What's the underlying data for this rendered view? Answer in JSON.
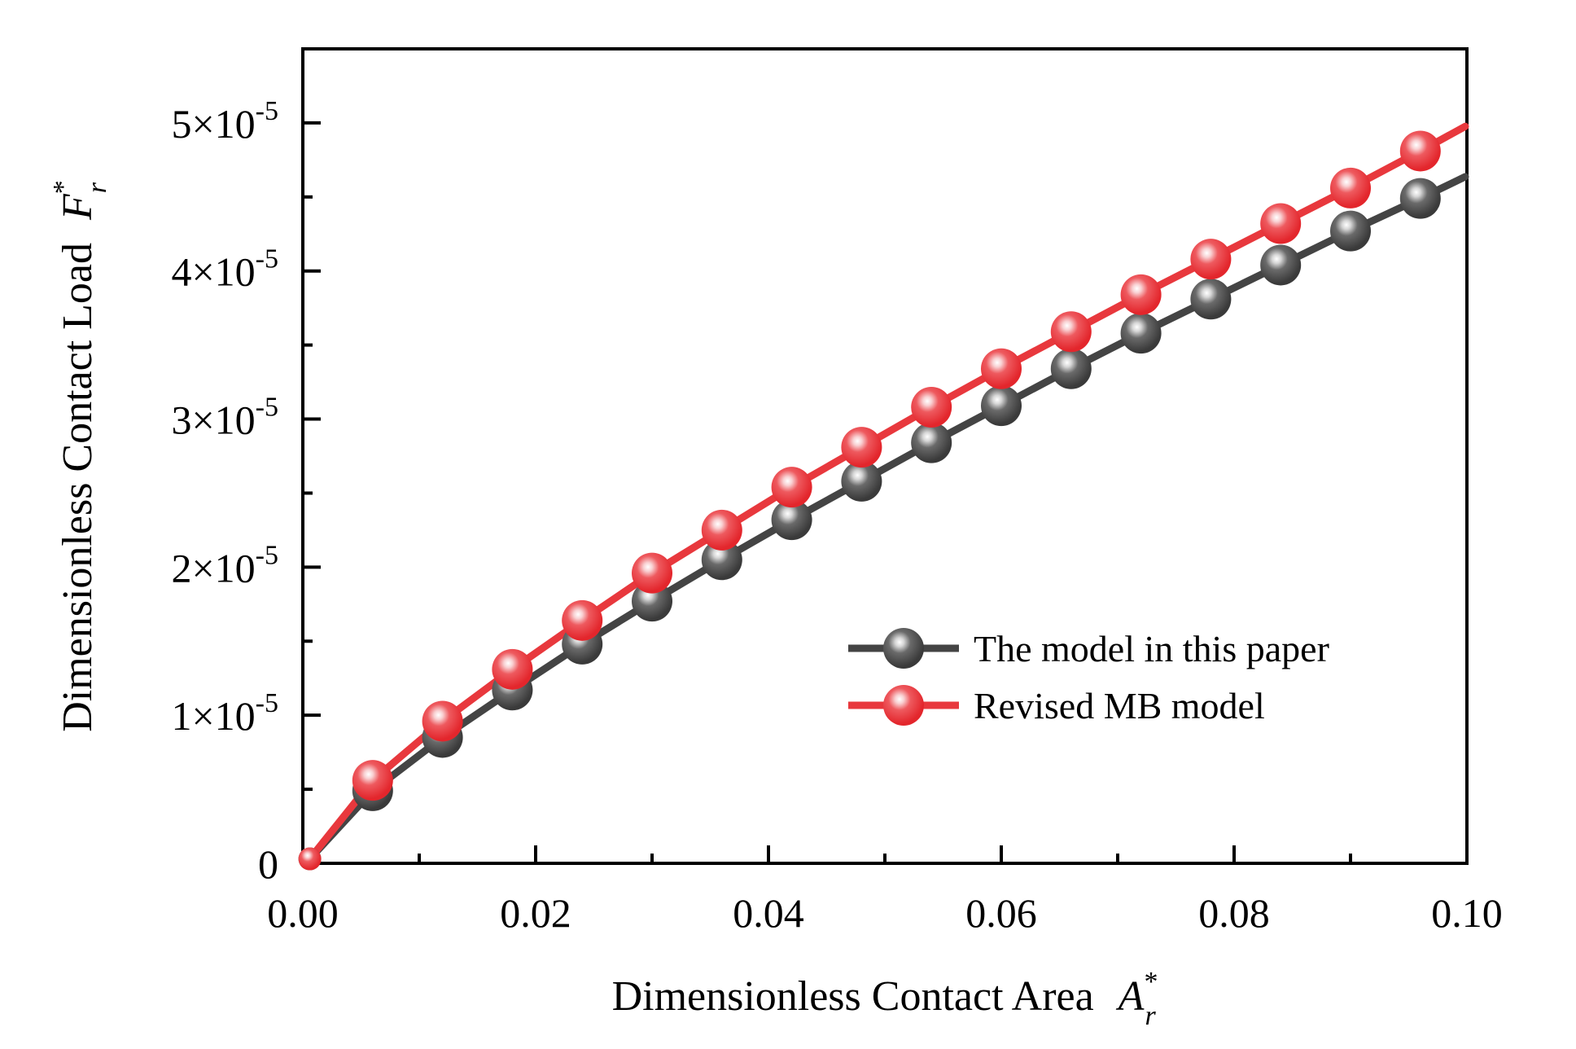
{
  "chart_data": {
    "type": "line",
    "title": "",
    "xlabel": "Dimensionless Contact Area",
    "xlabel_symbol": "A",
    "xlabel_sup": "*",
    "xlabel_sub": "r",
    "ylabel": "Dimensionless Contact Load",
    "ylabel_symbol": "F",
    "ylabel_sup": "*",
    "ylabel_sub": "r",
    "xlim": [
      0,
      0.1
    ],
    "ylim": [
      0,
      5.5e-05
    ],
    "x_ticks": [
      0,
      0.02,
      0.04,
      0.06,
      0.08,
      0.1
    ],
    "x_tick_labels": [
      "0.00",
      "0.02",
      "0.04",
      "0.06",
      "0.08",
      "0.10"
    ],
    "y_ticks": [
      0,
      1e-05,
      2e-05,
      3e-05,
      4e-05,
      5e-05
    ],
    "y_tick_labels": [
      {
        "mant": "0",
        "exp": ""
      },
      {
        "mant": "1×10",
        "exp": "-5"
      },
      {
        "mant": "2×10",
        "exp": "-5"
      },
      {
        "mant": "3×10",
        "exp": "-5"
      },
      {
        "mant": "4×10",
        "exp": "-5"
      },
      {
        "mant": "5×10",
        "exp": "-5"
      }
    ],
    "grid": false,
    "legend_position": "center-right",
    "series": [
      {
        "name": "The model in this paper",
        "color": "#444444",
        "highlight": "#cfcfcf",
        "x": [
          0.0006,
          0.006,
          0.012,
          0.018,
          0.024,
          0.03,
          0.036,
          0.042,
          0.048,
          0.054,
          0.06,
          0.066,
          0.072,
          0.078,
          0.084,
          0.09,
          0.096
        ],
        "y": [
          3e-07,
          4.9e-06,
          8.5e-06,
          1.17e-05,
          1.48e-05,
          1.77e-05,
          2.05e-05,
          2.32e-05,
          2.58e-05,
          2.84e-05,
          3.09e-05,
          3.34e-05,
          3.58e-05,
          3.81e-05,
          4.04e-05,
          4.27e-05,
          4.49e-05
        ]
      },
      {
        "name": "Revised MB model",
        "color": "#e8383d",
        "highlight": "#f7c6c8",
        "x": [
          0.0006,
          0.006,
          0.012,
          0.018,
          0.024,
          0.03,
          0.036,
          0.042,
          0.048,
          0.054,
          0.06,
          0.066,
          0.072,
          0.078,
          0.084,
          0.09,
          0.096
        ],
        "y": [
          3e-07,
          5.6e-06,
          9.6e-06,
          1.31e-05,
          1.64e-05,
          1.96e-05,
          2.25e-05,
          2.54e-05,
          2.81e-05,
          3.08e-05,
          3.34e-05,
          3.59e-05,
          3.84e-05,
          4.08e-05,
          4.32e-05,
          4.56e-05,
          4.81e-05
        ]
      }
    ]
  }
}
